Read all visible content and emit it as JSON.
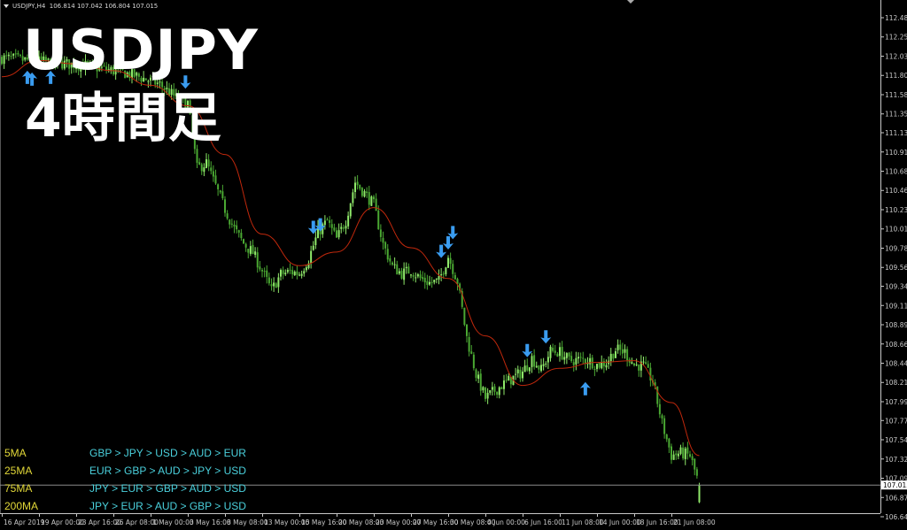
{
  "header": {
    "symbol": "USDJPY,H4",
    "ohlc": "106.814 107.042 106.804 107.015"
  },
  "overlay_title": {
    "line1": "USDJPY",
    "line2": "4時間足"
  },
  "legend": [
    {
      "label": "5MA",
      "ranking": "GBP > JPY > USD > AUD > EUR"
    },
    {
      "label": "25MA",
      "ranking": "EUR > GBP > AUD > JPY > USD"
    },
    {
      "label": "75MA",
      "ranking": "JPY > EUR > GBP > AUD > USD"
    },
    {
      "label": "200MA",
      "ranking": "JPY > EUR > AUD > GBP > USD"
    }
  ],
  "colors": {
    "background": "#000000",
    "bull_bar": "#8fe86a",
    "bear_bar": "#4aa832",
    "ma_line": "#c0280c",
    "signal_arrow": "#3a9cf0",
    "axis": "#c8c8c8",
    "price_line": "#8a8a8a",
    "legend_label": "#e2d838",
    "legend_value": "#4ad0dc"
  },
  "chart_data": {
    "type": "candlestick",
    "symbol": "USDJPY",
    "timeframe": "H4",
    "ylim": [
      106.645,
      112.48
    ],
    "grid": false,
    "y_ticks": [
      "112.480",
      "112.255",
      "112.030",
      "111.805",
      "111.580",
      "111.355",
      "111.135",
      "110.910",
      "110.685",
      "110.460",
      "110.235",
      "110.010",
      "109.785",
      "109.560",
      "109.340",
      "109.115",
      "108.890",
      "108.665",
      "108.440",
      "108.215",
      "107.990",
      "107.770",
      "107.545",
      "107.320",
      "107.095",
      "106.870",
      "106.645"
    ],
    "current_price": "107.015",
    "x_ticks": [
      {
        "label": "16 Apr 2019",
        "closes": [
          112.01,
          112.0,
          111.99,
          111.98
        ],
        "ma": 111.79
      },
      {
        "label": "19 Apr 00:00",
        "closes": [
          111.97,
          111.96,
          111.95,
          111.94
        ],
        "ma": 111.98
      },
      {
        "label": "23 Apr 16:00",
        "closes": [
          111.93,
          111.92,
          111.9,
          111.88
        ],
        "ma": 111.94
      },
      {
        "label": "26 Apr 08:00",
        "closes": [
          111.86,
          111.84,
          111.81,
          111.78
        ],
        "ma": 111.86
      },
      {
        "label": "1 May 00:00",
        "closes": [
          111.74,
          111.7,
          111.61,
          111.52
        ],
        "ma": 111.69
      },
      {
        "label": "3 May 16:00",
        "closes": [
          111.48,
          110.72,
          110.78,
          110.51
        ],
        "ma": 111.45
      },
      {
        "label": "8 May 08:00",
        "closes": [
          110.24,
          110.01,
          109.84,
          109.73
        ],
        "ma": 110.88
      },
      {
        "label": "13 May 00:00",
        "closes": [
          109.52,
          109.29,
          109.48,
          109.51
        ],
        "ma": 109.95
      },
      {
        "label": "15 May 16:00",
        "closes": [
          109.49,
          109.66,
          109.97,
          110.1
        ],
        "ma": 109.58
      },
      {
        "label": "20 May 08:00",
        "closes": [
          109.89,
          110.11,
          110.56,
          110.43
        ],
        "ma": 109.74
      },
      {
        "label": "23 May 00:00",
        "closes": [
          110.29,
          109.83,
          109.57,
          109.49
        ],
        "ma": 110.26
      },
      {
        "label": "27 May 16:00",
        "closes": [
          109.53,
          109.43,
          109.38,
          109.4
        ],
        "ma": 109.79
      },
      {
        "label": "30 May 08:00",
        "closes": [
          109.69,
          109.4,
          108.74,
          108.31
        ],
        "ma": 109.43
      },
      {
        "label": "4 Jun 00:00",
        "closes": [
          108.03,
          108.12,
          108.2,
          108.27
        ],
        "ma": 108.76
      },
      {
        "label": "6 Jun 16:00",
        "closes": [
          108.34,
          108.5,
          108.36,
          108.58
        ],
        "ma": 108.18
      },
      {
        "label": "11 Jun 08:00",
        "closes": [
          108.57,
          108.47,
          108.48,
          108.48
        ],
        "ma": 108.38
      },
      {
        "label": "14 Jun 00:00",
        "closes": [
          108.42,
          108.45,
          108.6,
          108.57
        ],
        "ma": 108.45
      },
      {
        "label": "18 Jun 16:00",
        "closes": [
          108.42,
          108.41,
          108.23,
          107.74
        ],
        "ma": 108.47
      },
      {
        "label": "21 Jun 08:00",
        "closes": [
          107.36,
          107.39,
          107.36,
          107.015
        ],
        "ma": 107.98
      }
    ],
    "ma_last": 107.36,
    "last_bar": {
      "open": 106.814,
      "high": 107.042,
      "low": 106.804,
      "close": 107.015
    },
    "signals": [
      {
        "dir": "up",
        "near": "16 Apr 2019",
        "bars_after": 11,
        "price": 111.86
      },
      {
        "dir": "up",
        "near": "16 Apr 2019",
        "bars_after": 13,
        "price": 111.84
      },
      {
        "dir": "up",
        "near": "19 Apr 00:00",
        "bars_after": 5,
        "price": 111.86
      },
      {
        "dir": "down",
        "near": "1 May 00:00",
        "bars_after": 15,
        "price": 111.65
      },
      {
        "dir": "down",
        "near": "15 May 16:00",
        "bars_after": 6,
        "price": 109.95
      },
      {
        "dir": "down",
        "near": "15 May 16:00",
        "bars_after": 9,
        "price": 109.98
      },
      {
        "dir": "down",
        "near": "27 May 16:00",
        "bars_after": 13,
        "price": 109.67
      },
      {
        "dir": "down",
        "near": "30 May 08:00",
        "bars_after": 0,
        "price": 109.77
      },
      {
        "dir": "down",
        "near": "30 May 08:00",
        "bars_after": 2,
        "price": 109.89
      },
      {
        "dir": "down",
        "near": "6 Jun 16:00",
        "bars_after": 2,
        "price": 108.51
      },
      {
        "dir": "down",
        "near": "6 Jun 16:00",
        "bars_after": 10,
        "price": 108.67
      },
      {
        "dir": "up",
        "near": "11 Jun 08:00",
        "bars_after": 11,
        "price": 108.22
      }
    ]
  }
}
